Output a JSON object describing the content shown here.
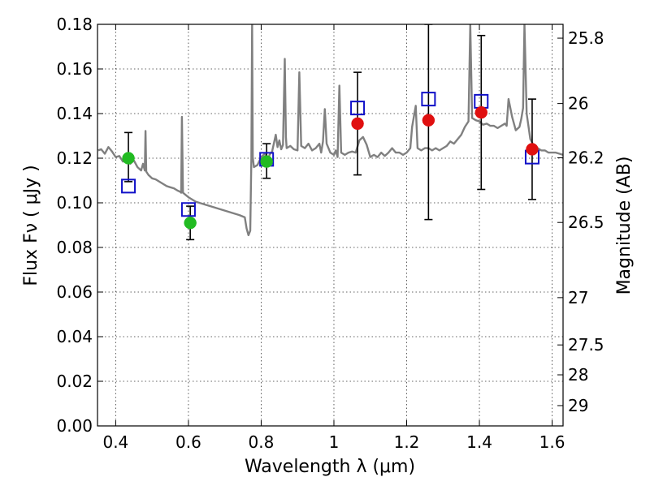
{
  "chart_data": {
    "type": "scatter",
    "title": "",
    "xlabel": "Wavelength  λ (μm)",
    "ylabel": "Flux  Fν  ( μJy )",
    "ylabel_right": "Magnitude (AB)",
    "xlim": [
      0.35,
      1.63
    ],
    "ylim": [
      0.0,
      0.18
    ],
    "grid": true,
    "x_ticks": [
      0.4,
      0.6,
      0.8,
      1.0,
      1.2,
      1.4,
      1.6
    ],
    "x_tick_labels": [
      "0.4",
      "0.6",
      "0.8",
      "1",
      "1.2",
      "1.4",
      "1.6"
    ],
    "y_ticks": [
      0.0,
      0.02,
      0.04,
      0.06,
      0.08,
      0.1,
      0.12,
      0.14,
      0.16,
      0.18
    ],
    "y_tick_labels": [
      "0.00",
      "0.02",
      "0.04",
      "0.06",
      "0.08",
      "0.10",
      "0.12",
      "0.14",
      "0.16",
      "0.18"
    ],
    "right_ticks": [
      {
        "label": "25.8",
        "flux": 0.1738
      },
      {
        "label": "26",
        "flux": 0.1445
      },
      {
        "label": "26.2",
        "flux": 0.1202
      },
      {
        "label": "26.5",
        "flux": 0.0912
      },
      {
        "label": "27",
        "flux": 0.0575
      },
      {
        "label": "27.5",
        "flux": 0.0363
      },
      {
        "label": "28",
        "flux": 0.0229
      },
      {
        "label": "29",
        "flux": 0.0091
      }
    ],
    "series": [
      {
        "kind": "line",
        "color": "#808080",
        "points": [
          [
            0.352,
            0.1235
          ],
          [
            0.36,
            0.124
          ],
          [
            0.37,
            0.122
          ],
          [
            0.38,
            0.125
          ],
          [
            0.39,
            0.123
          ],
          [
            0.4,
            0.1205
          ],
          [
            0.41,
            0.121
          ],
          [
            0.42,
            0.1185
          ],
          [
            0.425,
            0.1215
          ],
          [
            0.43,
            0.119
          ],
          [
            0.44,
            0.1175
          ],
          [
            0.45,
            0.119
          ],
          [
            0.46,
            0.116
          ],
          [
            0.47,
            0.1145
          ],
          [
            0.475,
            0.1175
          ],
          [
            0.48,
            0.1145
          ],
          [
            0.482,
            0.1322
          ],
          [
            0.484,
            0.114
          ],
          [
            0.49,
            0.1125
          ],
          [
            0.5,
            0.111
          ],
          [
            0.51,
            0.1105
          ],
          [
            0.52,
            0.1095
          ],
          [
            0.53,
            0.1085
          ],
          [
            0.54,
            0.1075
          ],
          [
            0.55,
            0.107
          ],
          [
            0.56,
            0.1065
          ],
          [
            0.57,
            0.1055
          ],
          [
            0.577,
            0.105
          ],
          [
            0.58,
            0.1045
          ],
          [
            0.582,
            0.1385
          ],
          [
            0.585,
            0.1045
          ],
          [
            0.6,
            0.1025
          ],
          [
            0.62,
            0.1005
          ],
          [
            0.64,
            0.0995
          ],
          [
            0.66,
            0.0985
          ],
          [
            0.68,
            0.0975
          ],
          [
            0.7,
            0.0965
          ],
          [
            0.72,
            0.0955
          ],
          [
            0.74,
            0.0945
          ],
          [
            0.755,
            0.0935
          ],
          [
            0.76,
            0.0885
          ],
          [
            0.765,
            0.0855
          ],
          [
            0.77,
            0.0875
          ],
          [
            0.773,
            0.1205
          ],
          [
            0.775,
            0.18
          ],
          [
            0.777,
            0.1205
          ],
          [
            0.78,
            0.116
          ],
          [
            0.79,
            0.117
          ],
          [
            0.8,
            0.1205
          ],
          [
            0.81,
            0.122
          ],
          [
            0.82,
            0.1195
          ],
          [
            0.823,
            0.1215
          ],
          [
            0.83,
            0.123
          ],
          [
            0.84,
            0.1305
          ],
          [
            0.845,
            0.125
          ],
          [
            0.85,
            0.128
          ],
          [
            0.855,
            0.124
          ],
          [
            0.86,
            0.126
          ],
          [
            0.865,
            0.1645
          ],
          [
            0.868,
            0.1295
          ],
          [
            0.87,
            0.1245
          ],
          [
            0.88,
            0.1255
          ],
          [
            0.89,
            0.124
          ],
          [
            0.9,
            0.1235
          ],
          [
            0.905,
            0.1585
          ],
          [
            0.91,
            0.1255
          ],
          [
            0.92,
            0.1245
          ],
          [
            0.93,
            0.1265
          ],
          [
            0.94,
            0.1235
          ],
          [
            0.95,
            0.1245
          ],
          [
            0.96,
            0.1265
          ],
          [
            0.965,
            0.1225
          ],
          [
            0.97,
            0.1275
          ],
          [
            0.975,
            0.142
          ],
          [
            0.98,
            0.1265
          ],
          [
            0.99,
            0.1225
          ],
          [
            1.0,
            0.1215
          ],
          [
            1.005,
            0.1235
          ],
          [
            1.01,
            0.1205
          ],
          [
            1.015,
            0.1525
          ],
          [
            1.02,
            0.1225
          ],
          [
            1.03,
            0.1215
          ],
          [
            1.04,
            0.1225
          ],
          [
            1.05,
            0.123
          ],
          [
            1.06,
            0.1225
          ],
          [
            1.07,
            0.128
          ],
          [
            1.08,
            0.1295
          ],
          [
            1.09,
            0.126
          ],
          [
            1.1,
            0.1205
          ],
          [
            1.11,
            0.1215
          ],
          [
            1.12,
            0.1205
          ],
          [
            1.13,
            0.1225
          ],
          [
            1.14,
            0.121
          ],
          [
            1.15,
            0.1225
          ],
          [
            1.16,
            0.1245
          ],
          [
            1.17,
            0.1225
          ],
          [
            1.18,
            0.1225
          ],
          [
            1.19,
            0.1215
          ],
          [
            1.2,
            0.1225
          ],
          [
            1.21,
            0.1245
          ],
          [
            1.215,
            0.134
          ],
          [
            1.225,
            0.1435
          ],
          [
            1.23,
            0.1245
          ],
          [
            1.24,
            0.1235
          ],
          [
            1.25,
            0.1245
          ],
          [
            1.26,
            0.1245
          ],
          [
            1.27,
            0.1235
          ],
          [
            1.28,
            0.1245
          ],
          [
            1.29,
            0.1235
          ],
          [
            1.3,
            0.1245
          ],
          [
            1.31,
            0.1255
          ],
          [
            1.32,
            0.1275
          ],
          [
            1.33,
            0.1265
          ],
          [
            1.34,
            0.1285
          ],
          [
            1.35,
            0.1305
          ],
          [
            1.36,
            0.134
          ],
          [
            1.37,
            0.1365
          ],
          [
            1.375,
            0.18
          ],
          [
            1.38,
            0.138
          ],
          [
            1.39,
            0.137
          ],
          [
            1.4,
            0.1365
          ],
          [
            1.41,
            0.135
          ],
          [
            1.42,
            0.1355
          ],
          [
            1.43,
            0.1345
          ],
          [
            1.44,
            0.1345
          ],
          [
            1.45,
            0.1335
          ],
          [
            1.46,
            0.1345
          ],
          [
            1.47,
            0.1355
          ],
          [
            1.475,
            0.1345
          ],
          [
            1.48,
            0.1465
          ],
          [
            1.49,
            0.1385
          ],
          [
            1.5,
            0.1325
          ],
          [
            1.51,
            0.134
          ],
          [
            1.515,
            0.1375
          ],
          [
            1.52,
            0.1425
          ],
          [
            1.524,
            0.18
          ],
          [
            1.53,
            0.14
          ],
          [
            1.54,
            0.1285
          ],
          [
            1.55,
            0.1255
          ],
          [
            1.56,
            0.1245
          ],
          [
            1.57,
            0.1235
          ],
          [
            1.58,
            0.1235
          ],
          [
            1.59,
            0.1225
          ],
          [
            1.6,
            0.1225
          ],
          [
            1.61,
            0.1225
          ],
          [
            1.62,
            0.122
          ],
          [
            1.63,
            0.1215
          ]
        ]
      },
      {
        "kind": "errorbar",
        "color": "#000000",
        "points": [
          {
            "x": 0.435,
            "y": 0.12,
            "low": 0.1095,
            "high": 0.1315
          },
          {
            "x": 0.605,
            "y": 0.091,
            "low": 0.0835,
            "high": 0.0985
          },
          {
            "x": 0.815,
            "y": 0.1185,
            "low": 0.111,
            "high": 0.1265
          },
          {
            "x": 1.065,
            "y": 0.1355,
            "low": 0.1125,
            "high": 0.1585
          },
          {
            "x": 1.26,
            "y": 0.137,
            "low": 0.0925,
            "high": 0.18
          },
          {
            "x": 1.405,
            "y": 0.1405,
            "low": 0.106,
            "high": 0.175
          },
          {
            "x": 1.545,
            "y": 0.124,
            "low": 0.1015,
            "high": 0.1465
          }
        ]
      },
      {
        "kind": "marker-square",
        "color": "#1010c8",
        "points": [
          [
            0.435,
            0.1075
          ],
          [
            0.6,
            0.097
          ],
          [
            0.815,
            0.1195
          ],
          [
            1.065,
            0.1425
          ],
          [
            1.26,
            0.1465
          ],
          [
            1.405,
            0.1455
          ],
          [
            1.545,
            0.1205
          ]
        ]
      },
      {
        "kind": "marker-circle",
        "color": "#22bb22",
        "points": [
          [
            0.435,
            0.12
          ],
          [
            0.605,
            0.091
          ],
          [
            0.815,
            0.1185
          ]
        ]
      },
      {
        "kind": "marker-circle",
        "color": "#e01010",
        "points": [
          [
            1.065,
            0.1355
          ],
          [
            1.26,
            0.137
          ],
          [
            1.405,
            0.1405
          ],
          [
            1.545,
            0.124
          ]
        ]
      }
    ]
  }
}
